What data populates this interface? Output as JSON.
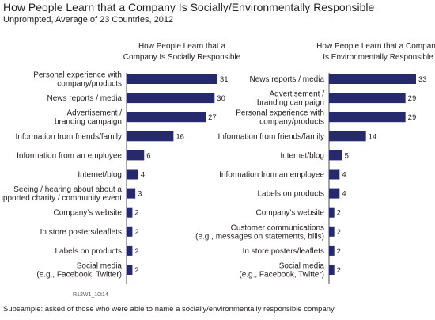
{
  "header": {
    "title": "How People Learn that a Company Is Socially/Environmentally Responsible",
    "subtitle": "Unprompted, Average of 23 Countries, 2012"
  },
  "footer": {
    "code": "R12W1_10t14",
    "note": "Subsample: asked of those who were able to name a socially/environmentally responsible company"
  },
  "colors": {
    "bar": "#27296d",
    "axis": "#231f20"
  },
  "chart_data": [
    {
      "type": "bar",
      "orientation": "horizontal",
      "title": "How People Learn that a Company Is Socially Responsible",
      "categories": [
        "Personal experience with company/products",
        "News reports / media",
        "Advertisement / branding campaign",
        "Information from friends/family",
        "Information from an employee",
        "Internet/blog",
        "Seeing / hearing about about a supported charity / community event",
        "Company's website",
        "In store posters/leaflets",
        "Labels on products",
        "Social media (e.g., Facebook, Twitter)"
      ],
      "label_lines": [
        [
          "Personal experience with",
          "company/products"
        ],
        [
          "News reports / media"
        ],
        [
          "Advertisement /",
          "branding campaign"
        ],
        [
          "Information from friends/family"
        ],
        [
          "Information from an employee"
        ],
        [
          "Internet/blog"
        ],
        [
          "Seeing / hearing about about a",
          "supported charity / community event"
        ],
        [
          "Company’s website"
        ],
        [
          "In store posters/leaflets"
        ],
        [
          "Labels on products"
        ],
        [
          "Social media",
          "(e.g., Facebook, Twitter)"
        ]
      ],
      "values": [
        31,
        30,
        27,
        16,
        6,
        4,
        3,
        2,
        2,
        2,
        2
      ]
    },
    {
      "type": "bar",
      "orientation": "horizontal",
      "title": "How People Learn that a Company Is Environmentally Responsible",
      "categories": [
        "News reports / media",
        "Advertisement / branding campaign",
        "Personal experience with company/products",
        "Information from friends/family",
        "Internet/blog",
        "Information from an employee",
        "Labels on products",
        "Company's website",
        "Customer communications (e.g., messages on statements, bills)",
        "In store posters/leaflets",
        "Social media (e.g., Facebook, Twitter)"
      ],
      "label_lines": [
        [
          "News reports / media"
        ],
        [
          "Advertisement /",
          "branding campaign"
        ],
        [
          "Personal experience with",
          "company/products"
        ],
        [
          "Information from friends/family"
        ],
        [
          "Internet/blog"
        ],
        [
          "Information from an employee"
        ],
        [
          "Labels on products"
        ],
        [
          "Company’s website"
        ],
        [
          "Customer communications",
          "(e.g., messages on statements, bills)"
        ],
        [
          "In store posters/leaflets"
        ],
        [
          "Social media",
          "(e.g., Facebook, Twitter)"
        ]
      ],
      "values": [
        33,
        29,
        29,
        14,
        5,
        4,
        4,
        2,
        2,
        2,
        2
      ]
    }
  ]
}
